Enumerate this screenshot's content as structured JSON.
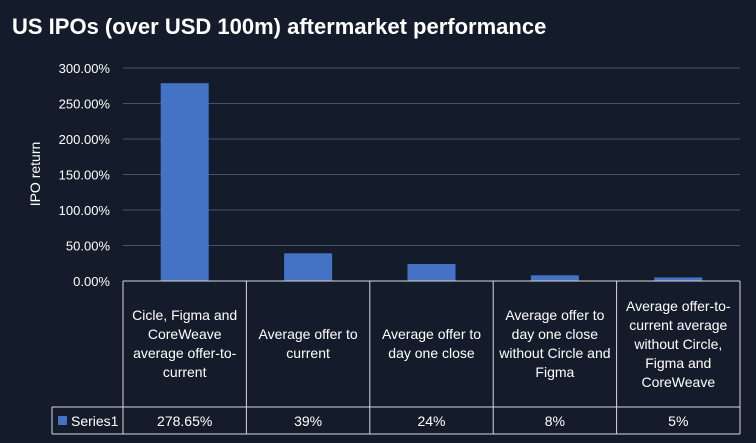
{
  "chart_data": {
    "type": "bar",
    "title": "US IPOs (over USD 100m) aftermarket performance",
    "ylabel": "IPO return",
    "xlabel": "",
    "ylim": [
      0,
      300
    ],
    "yticks": [
      "0.00%",
      "50.00%",
      "100.00%",
      "150.00%",
      "200.00%",
      "250.00%",
      "300.00%"
    ],
    "categories": [
      "Cicle, Figma and CoreWeave average offer-to-current",
      "Average offer to current",
      "Average offer to day one close",
      "Average offer to day one close without Circle and Figma",
      "Average offer-to-current average without Circle, Figma and CoreWeave"
    ],
    "series": [
      {
        "name": "Series1",
        "values": [
          278.65,
          39,
          24,
          8,
          5
        ],
        "labels": [
          "278.65%",
          "39%",
          "24%",
          "8%",
          "5%"
        ],
        "color": "#4472c4"
      }
    ],
    "grid": true,
    "legend": "data-table"
  }
}
